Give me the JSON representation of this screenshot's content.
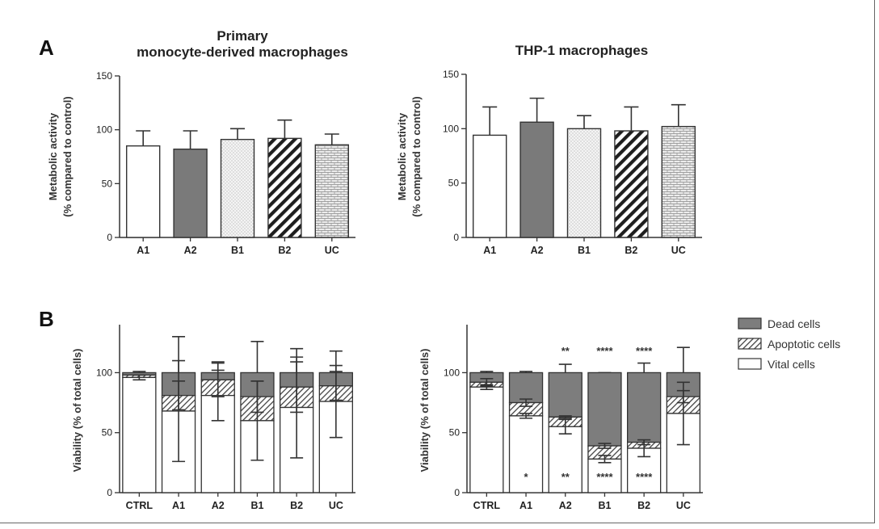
{
  "panels": {
    "a": "A",
    "b": "B"
  },
  "titles": {
    "a_left_line1": "Primary",
    "a_left_line2": "monocyte-derived macrophages",
    "a_right": "THP-1 macrophages"
  },
  "colors": {
    "dark_fill": "#7a7a7a",
    "dead_fill": "#7d7d7d",
    "axis": "#333333"
  },
  "legend": {
    "dead": "Dead cells",
    "apoptotic": "Apoptotic cells",
    "vital": "Vital cells"
  },
  "chart_data": [
    {
      "id": "A-left",
      "type": "bar",
      "title": "Primary monocyte-derived macrophages",
      "ylabel_line1": "Metabolic activity",
      "ylabel_line2": "(% compared to control)",
      "categories": [
        "A1",
        "A2",
        "B1",
        "B2",
        "UC"
      ],
      "values": [
        85,
        82,
        91,
        92,
        86
      ],
      "errors": [
        14,
        17,
        10,
        17,
        10
      ],
      "patterns": [
        "white",
        "dark",
        "dots",
        "diagonal",
        "brick"
      ],
      "ylim": [
        0,
        150
      ],
      "yticks": [
        0,
        50,
        100,
        150
      ]
    },
    {
      "id": "A-right",
      "type": "bar",
      "title": "THP-1 macrophages",
      "ylabel_line1": "Metabolic activity",
      "ylabel_line2": "(% compared to control)",
      "categories": [
        "A1",
        "A2",
        "B1",
        "B2",
        "UC"
      ],
      "values": [
        94,
        106,
        100,
        98,
        102
      ],
      "errors": [
        26,
        22,
        12,
        22,
        20
      ],
      "patterns": [
        "white",
        "dark",
        "dots",
        "diagonal",
        "brick"
      ],
      "ylim": [
        0,
        150
      ],
      "yticks": [
        0,
        50,
        100,
        150
      ]
    },
    {
      "id": "B-left",
      "type": "bar",
      "stacked": true,
      "ylabel": "Viability (% of total cells)",
      "categories": [
        "CTRL",
        "A1",
        "A2",
        "B1",
        "B2",
        "UC"
      ],
      "series": [
        {
          "name": "Vital cells",
          "values": [
            96,
            68,
            81,
            60,
            71,
            76
          ],
          "errors": [
            2,
            42,
            21,
            33,
            42,
            30
          ]
        },
        {
          "name": "Apoptotic cells",
          "values": [
            2,
            13,
            13,
            20,
            17,
            13
          ],
          "errors": [
            0,
            0,
            0,
            0,
            0,
            0
          ]
        },
        {
          "name": "Dead cells",
          "values": [
            2,
            19,
            6,
            20,
            12,
            11
          ],
          "errors": [
            1,
            30,
            9,
            26,
            20,
            18
          ]
        }
      ],
      "band_errors": [
        {
          "cat": "A1",
          "value": 81,
          "err": 12
        },
        {
          "cat": "A2",
          "value": 94,
          "err": 14
        },
        {
          "cat": "B1",
          "value": 80,
          "err": 13
        },
        {
          "cat": "B2",
          "value": 88,
          "err": 21
        },
        {
          "cat": "UC",
          "value": 89,
          "err": 12
        }
      ],
      "ylim": [
        0,
        140
      ],
      "yticks": [
        0,
        50,
        100
      ]
    },
    {
      "id": "B-right",
      "type": "bar",
      "stacked": true,
      "ylabel": "Viability (% of total cells)",
      "categories": [
        "CTRL",
        "A1",
        "A2",
        "B1",
        "B2",
        "UC"
      ],
      "series": [
        {
          "name": "Vital cells",
          "values": [
            88,
            64,
            55,
            28,
            37,
            66
          ],
          "errors": [
            2,
            2,
            6,
            3,
            7,
            26
          ]
        },
        {
          "name": "Apoptotic cells",
          "values": [
            4,
            11,
            8,
            11,
            5,
            14
          ],
          "errors": [
            0,
            0,
            0,
            0,
            0,
            0
          ]
        },
        {
          "name": "Dead cells",
          "values": [
            8,
            25,
            37,
            61,
            58,
            20
          ],
          "errors": [
            1,
            1,
            7,
            0,
            8,
            21
          ]
        }
      ],
      "band_errors": [
        {
          "cat": "CTRL",
          "value": 92,
          "err": 3
        },
        {
          "cat": "A1",
          "value": 75,
          "err": 3
        },
        {
          "cat": "A2",
          "value": 63,
          "err": 1
        },
        {
          "cat": "B1",
          "value": 39,
          "err": 2
        },
        {
          "cat": "B2",
          "value": 42,
          "err": 2
        },
        {
          "cat": "UC",
          "value": 80,
          "err": 5
        }
      ],
      "significance_top": [
        "",
        "",
        "**",
        "****",
        "****",
        ""
      ],
      "significance_bottom": [
        "",
        "*",
        "**",
        "****",
        "****",
        ""
      ],
      "ylim": [
        0,
        140
      ],
      "yticks": [
        0,
        50,
        100
      ]
    }
  ]
}
